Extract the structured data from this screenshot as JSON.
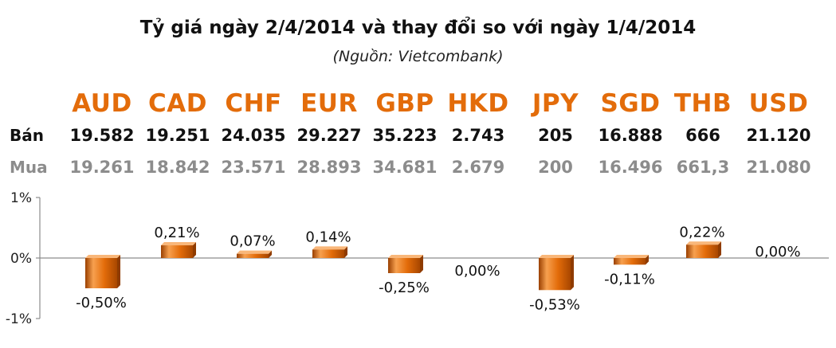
{
  "chart_data": {
    "type": "bar",
    "title": "Tỷ giá ngày 2/4/2014 và thay đổi so với ngày 1/4/2014",
    "subtitle": "(Nguồn: Vietcombank)",
    "categories": [
      "AUD",
      "CAD",
      "CHF",
      "EUR",
      "GBP",
      "HKD",
      "JPY",
      "SGD",
      "THB",
      "USD"
    ],
    "row_labels": {
      "sell": "Bán",
      "buy": "Mua"
    },
    "sell": [
      "19.582",
      "19.251",
      "24.035",
      "29.227",
      "35.223",
      "2.743",
      "205",
      "16.888",
      "666",
      "21.120"
    ],
    "buy": [
      "19.261",
      "18.842",
      "23.571",
      "28.893",
      "34.681",
      "2.679",
      "200",
      "16.496",
      "661,3",
      "21.080"
    ],
    "series": [
      {
        "values": [
          -0.5,
          0.21,
          0.07,
          0.14,
          -0.25,
          0.0,
          -0.53,
          -0.11,
          0.22,
          0.0
        ]
      }
    ],
    "data_labels": [
      "-0,50%",
      "0,21%",
      "0,07%",
      "0,14%",
      "-0,25%",
      "0,00%",
      "-0,53%",
      "-0,11%",
      "0,22%",
      "0,00%"
    ],
    "ylim": [
      -1,
      1
    ],
    "yticks": [
      "1%",
      "0%",
      "-1%"
    ],
    "bar_color": "#e36c0a",
    "code_color": "#e36c0a",
    "grid": false
  }
}
